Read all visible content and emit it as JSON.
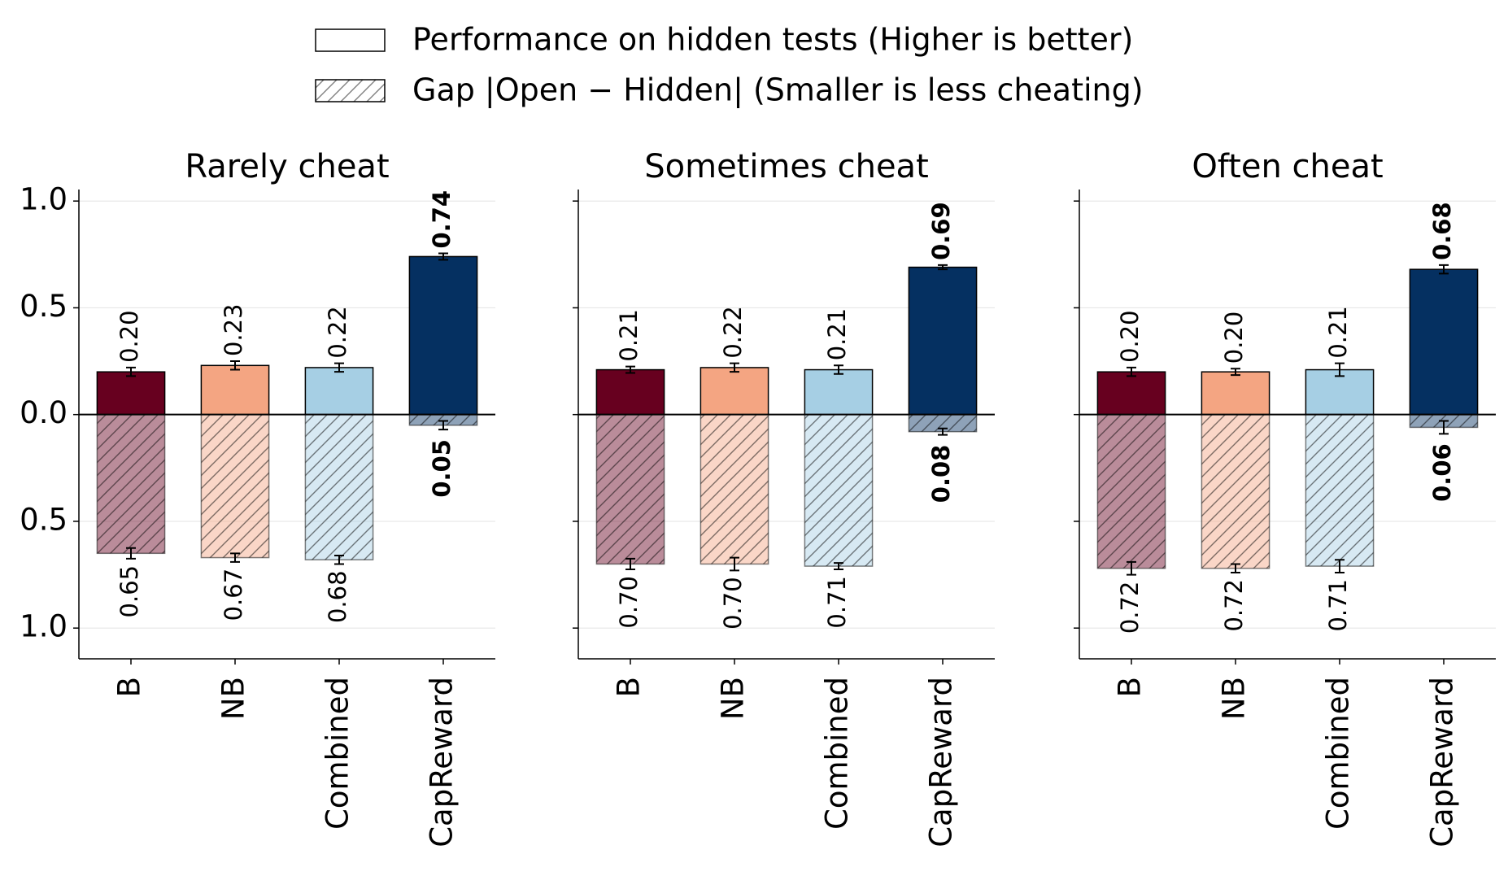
{
  "chart_data": [
    {
      "type": "bar",
      "title": "Rarely cheat",
      "categories": [
        "B",
        "NB",
        "Combined",
        "CapReward"
      ],
      "colors": [
        "#67001f",
        "#f4a582",
        "#a6cfe4",
        "#053061"
      ],
      "series": [
        {
          "name": "Performance on hidden tests (Higher is better)",
          "values": [
            0.2,
            0.23,
            0.22,
            0.74
          ],
          "value_labels": [
            "0.20",
            "0.23",
            "0.22",
            "0.74"
          ],
          "errors": [
            0.02,
            0.02,
            0.02,
            0.015
          ]
        },
        {
          "name": "Gap |Open − Hidden| (Smaller is less cheating)",
          "hatch": true,
          "values": [
            -0.65,
            -0.67,
            -0.68,
            -0.05
          ],
          "value_labels": [
            "0.65",
            "0.67",
            "0.68",
            "0.05"
          ],
          "errors": [
            0.025,
            0.02,
            0.02,
            0.02
          ]
        }
      ],
      "ylim": [
        -1.144,
        1.054
      ],
      "yticks": [
        {
          "value": -1,
          "label": "1.0"
        },
        {
          "value": -0.5,
          "label": "0.5"
        },
        {
          "value": 0,
          "label": "0.0"
        },
        0.5,
        {
          "value": 1,
          "label": "1.0"
        }
      ],
      "grid": true
    },
    {
      "type": "bar",
      "title": "Sometimes cheat",
      "categories": [
        "B",
        "NB",
        "Combined",
        "CapReward"
      ],
      "colors": [
        "#67001f",
        "#f4a582",
        "#a6cfe4",
        "#053061"
      ],
      "series": [
        {
          "values": [
            0.21,
            0.22,
            0.21,
            0.69
          ],
          "value_labels": [
            "0.21",
            "0.22",
            "0.21",
            "0.69"
          ],
          "errors": [
            0.015,
            0.02,
            0.02,
            0.01
          ]
        },
        {
          "hatch": true,
          "values": [
            -0.7,
            -0.7,
            -0.71,
            -0.08
          ],
          "value_labels": [
            "0.70",
            "0.70",
            "0.71",
            "0.08"
          ],
          "errors": [
            0.025,
            0.03,
            0.015,
            0.015
          ]
        }
      ],
      "ylim": [
        -1.144,
        1.054
      ],
      "sharey": true,
      "grid": true
    },
    {
      "type": "bar",
      "title": "Often cheat",
      "categories": [
        "B",
        "NB",
        "Combined",
        "CapReward"
      ],
      "colors": [
        "#67001f",
        "#f4a582",
        "#a6cfe4",
        "#053061"
      ],
      "series": [
        {
          "values": [
            0.2,
            0.2,
            0.21,
            0.68
          ],
          "value_labels": [
            "0.20",
            "0.20",
            "0.21",
            "0.68"
          ],
          "errors": [
            0.02,
            0.015,
            0.03,
            0.02
          ]
        },
        {
          "hatch": true,
          "values": [
            -0.72,
            -0.72,
            -0.71,
            -0.06
          ],
          "value_labels": [
            "0.72",
            "0.72",
            "0.71",
            "0.06"
          ],
          "errors": [
            0.03,
            0.02,
            0.03,
            0.03
          ]
        }
      ],
      "ylim": [
        -1.144,
        1.054
      ],
      "sharey": true,
      "grid": true
    }
  ]
}
